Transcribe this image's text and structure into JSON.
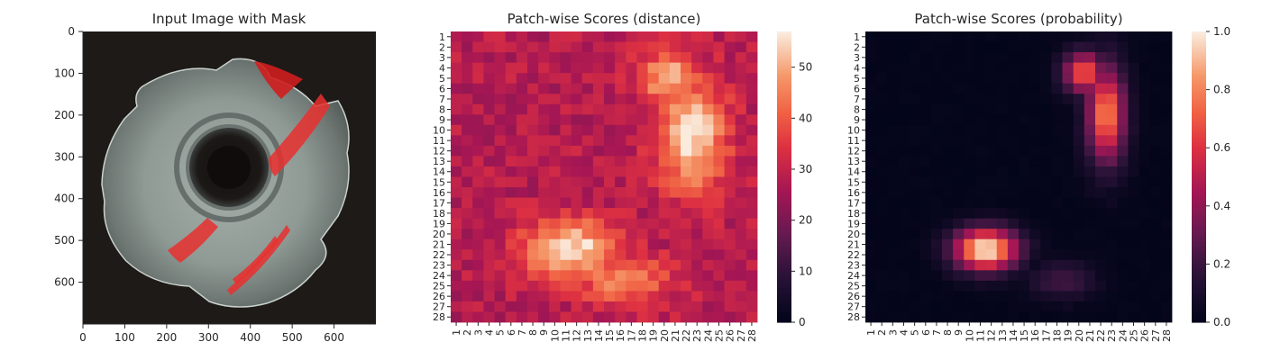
{
  "chart_data": [
    {
      "type": "image",
      "title": "Input Image with Mask",
      "xticks": [
        "0",
        "100",
        "200",
        "300",
        "400",
        "500",
        "600"
      ],
      "yticks": [
        "0",
        "100",
        "200",
        "300",
        "400",
        "500",
        "600"
      ],
      "xlim": [
        0,
        700
      ],
      "ylim": [
        700,
        0
      ],
      "mask_color": "#e8302f",
      "background_color": "#1e1a18"
    },
    {
      "type": "heatmap",
      "title": "Patch-wise Scores (distance)",
      "rows": 28,
      "cols": 28,
      "xticks": [
        "1",
        "2",
        "3",
        "4",
        "5",
        "6",
        "7",
        "8",
        "9",
        "10",
        "11",
        "12",
        "13",
        "14",
        "15",
        "16",
        "17",
        "18",
        "19",
        "20",
        "21",
        "22",
        "23",
        "24",
        "25",
        "26",
        "27",
        "28"
      ],
      "yticks": [
        "1",
        "2",
        "3",
        "4",
        "5",
        "6",
        "7",
        "8",
        "9",
        "10",
        "11",
        "12",
        "13",
        "14",
        "15",
        "16",
        "17",
        "18",
        "19",
        "20",
        "21",
        "22",
        "23",
        "24",
        "25",
        "26",
        "27",
        "28"
      ],
      "colorbar_ticks": [
        "0",
        "10",
        "20",
        "30",
        "40",
        "50"
      ],
      "vmin": 0,
      "vmax": 57,
      "colormap": "rocket",
      "hotspots": [
        {
          "row": 10.5,
          "col": 22.5,
          "peak": 56,
          "spread_row": 3.8,
          "spread_col": 2.2
        },
        {
          "row": 5,
          "col": 20.5,
          "peak": 52,
          "spread_row": 1.8,
          "spread_col": 2.0
        },
        {
          "row": 21.5,
          "col": 11.5,
          "peak": 57,
          "spread_row": 2.0,
          "spread_col": 3.0
        },
        {
          "row": 24.5,
          "col": 16.5,
          "peak": 47,
          "spread_row": 1.6,
          "spread_col": 3.0
        }
      ],
      "baseline": 28
    },
    {
      "type": "heatmap",
      "title": "Patch-wise Scores (probability)",
      "rows": 28,
      "cols": 28,
      "xticks": [
        "1",
        "2",
        "3",
        "4",
        "5",
        "6",
        "7",
        "8",
        "9",
        "10",
        "11",
        "12",
        "13",
        "14",
        "15",
        "16",
        "17",
        "18",
        "19",
        "20",
        "21",
        "22",
        "23",
        "24",
        "25",
        "26",
        "27",
        "28"
      ],
      "yticks": [
        "1",
        "2",
        "3",
        "4",
        "5",
        "6",
        "7",
        "8",
        "9",
        "10",
        "11",
        "12",
        "13",
        "14",
        "15",
        "16",
        "17",
        "18",
        "19",
        "20",
        "21",
        "22",
        "23",
        "24",
        "25",
        "26",
        "27",
        "28"
      ],
      "colorbar_ticks": [
        "0.0",
        "0.2",
        "0.4",
        "0.6",
        "0.8",
        "1.0"
      ],
      "vmin": 0,
      "vmax": 1,
      "colormap": "rocket",
      "hotspots": [
        {
          "row": 8.5,
          "col": 22.5,
          "peak": 0.78,
          "spread_row": 3.2,
          "spread_col": 1.2
        },
        {
          "row": 4.5,
          "col": 20.5,
          "peak": 0.7,
          "spread_row": 1.4,
          "spread_col": 1.3
        },
        {
          "row": 21.5,
          "col": 11.5,
          "peak": 1.0,
          "spread_row": 1.4,
          "spread_col": 2.0
        },
        {
          "row": 24.5,
          "col": 18.5,
          "peak": 0.2,
          "spread_row": 1.2,
          "spread_col": 2.0
        }
      ],
      "baseline": 0
    }
  ]
}
